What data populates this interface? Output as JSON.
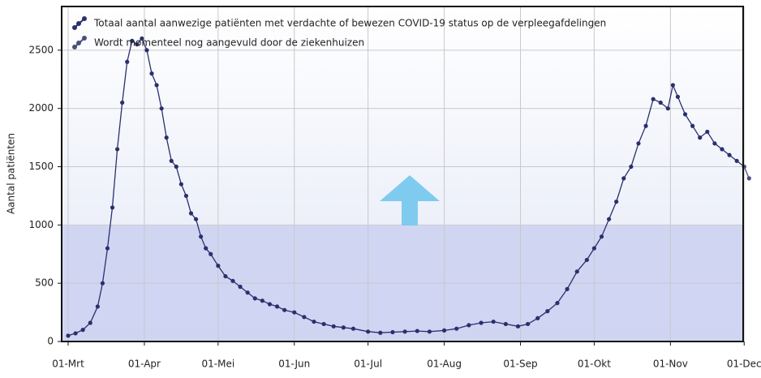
{
  "chart_data": {
    "type": "line",
    "y_label": "Aantal patiënten",
    "x": [
      "01-Mrt",
      "04-Mrt",
      "07-Mrt",
      "10-Mrt",
      "13-Mrt",
      "15-Mrt",
      "17-Mrt",
      "19-Mrt",
      "21-Mrt",
      "23-Mrt",
      "25-Mrt",
      "27-Mrt",
      "29-Mrt",
      "31-Mrt",
      "02-Apr",
      "04-Apr",
      "06-Apr",
      "08-Apr",
      "10-Apr",
      "12-Apr",
      "14-Apr",
      "16-Apr",
      "18-Apr",
      "20-Apr",
      "22-Apr",
      "24-Apr",
      "26-Apr",
      "28-Apr",
      "01-Mei",
      "04-Mei",
      "07-Mei",
      "10-Mei",
      "13-Mei",
      "16-Mei",
      "19-Mei",
      "22-Mei",
      "25-Mei",
      "28-Mei",
      "01-Jun",
      "05-Jun",
      "09-Jun",
      "13-Jun",
      "17-Jun",
      "21-Jun",
      "25-Jun",
      "01-Jul",
      "06-Jul",
      "11-Jul",
      "16-Jul",
      "21-Jul",
      "26-Jul",
      "01-Aug",
      "06-Aug",
      "11-Aug",
      "16-Aug",
      "21-Aug",
      "26-Aug",
      "31-Aug",
      "04-Sep",
      "08-Sep",
      "12-Sep",
      "16-Sep",
      "20-Sep",
      "24-Sep",
      "28-Sep",
      "01-Okt",
      "04-Okt",
      "07-Okt",
      "10-Okt",
      "13-Okt",
      "16-Okt",
      "19-Okt",
      "22-Okt",
      "25-Okt",
      "28-Okt",
      "31-Okt",
      "02-Nov",
      "04-Nov",
      "07-Nov",
      "10-Nov",
      "13-Nov",
      "16-Nov",
      "19-Nov",
      "22-Nov",
      "25-Nov",
      "28-Nov",
      "01-Dec",
      "03-Dec"
    ],
    "series": [
      {
        "name": "Totaal aantal aanwezige patiënten met verdachte of bewezen COVID-19 status op de verpleegafdelingen",
        "color": "#2a2f6e",
        "values": [
          50,
          70,
          100,
          160,
          300,
          500,
          800,
          1150,
          1650,
          2050,
          2400,
          2580,
          2550,
          2600,
          2500,
          2300,
          2200,
          2000,
          1750,
          1550,
          1500,
          1350,
          1250,
          1100,
          1050,
          900,
          800,
          750,
          650,
          560,
          520,
          470,
          420,
          370,
          350,
          320,
          300,
          270,
          250,
          210,
          170,
          150,
          130,
          120,
          110,
          85,
          75,
          80,
          85,
          90,
          85,
          95,
          110,
          140,
          160,
          170,
          150,
          130,
          150,
          200,
          260,
          330,
          450,
          600,
          700,
          800,
          900,
          1050,
          1200,
          1400,
          1500,
          1700,
          1850,
          2080,
          2050,
          2000,
          2200,
          2100,
          1950,
          1850,
          1750,
          1800,
          1700,
          1650,
          1600,
          1550,
          1500,
          null
        ]
      },
      {
        "name": "Wordt momenteel nog aangevuld door de ziekenhuizen",
        "color": "#4a4f7e",
        "values": [
          null,
          null,
          null,
          null,
          null,
          null,
          null,
          null,
          null,
          null,
          null,
          null,
          null,
          null,
          null,
          null,
          null,
          null,
          null,
          null,
          null,
          null,
          null,
          null,
          null,
          null,
          null,
          null,
          null,
          null,
          null,
          null,
          null,
          null,
          null,
          null,
          null,
          null,
          null,
          null,
          null,
          null,
          null,
          null,
          null,
          null,
          null,
          null,
          null,
          null,
          null,
          null,
          null,
          null,
          null,
          null,
          null,
          null,
          null,
          null,
          null,
          null,
          null,
          null,
          null,
          null,
          null,
          null,
          null,
          null,
          null,
          null,
          null,
          null,
          null,
          null,
          null,
          null,
          null,
          null,
          null,
          null,
          null,
          null,
          null,
          null,
          1500,
          1400
        ]
      }
    ],
    "xticks": [
      "01-Mrt",
      "01-Apr",
      "01-Mei",
      "01-Jun",
      "01-Jul",
      "01-Aug",
      "01-Sep",
      "01-Okt",
      "01-Nov",
      "01-Dec"
    ],
    "ylim": [
      0,
      2875
    ],
    "yticks": [
      0,
      500,
      1000,
      1500,
      2000,
      2500
    ],
    "grid": true
  }
}
